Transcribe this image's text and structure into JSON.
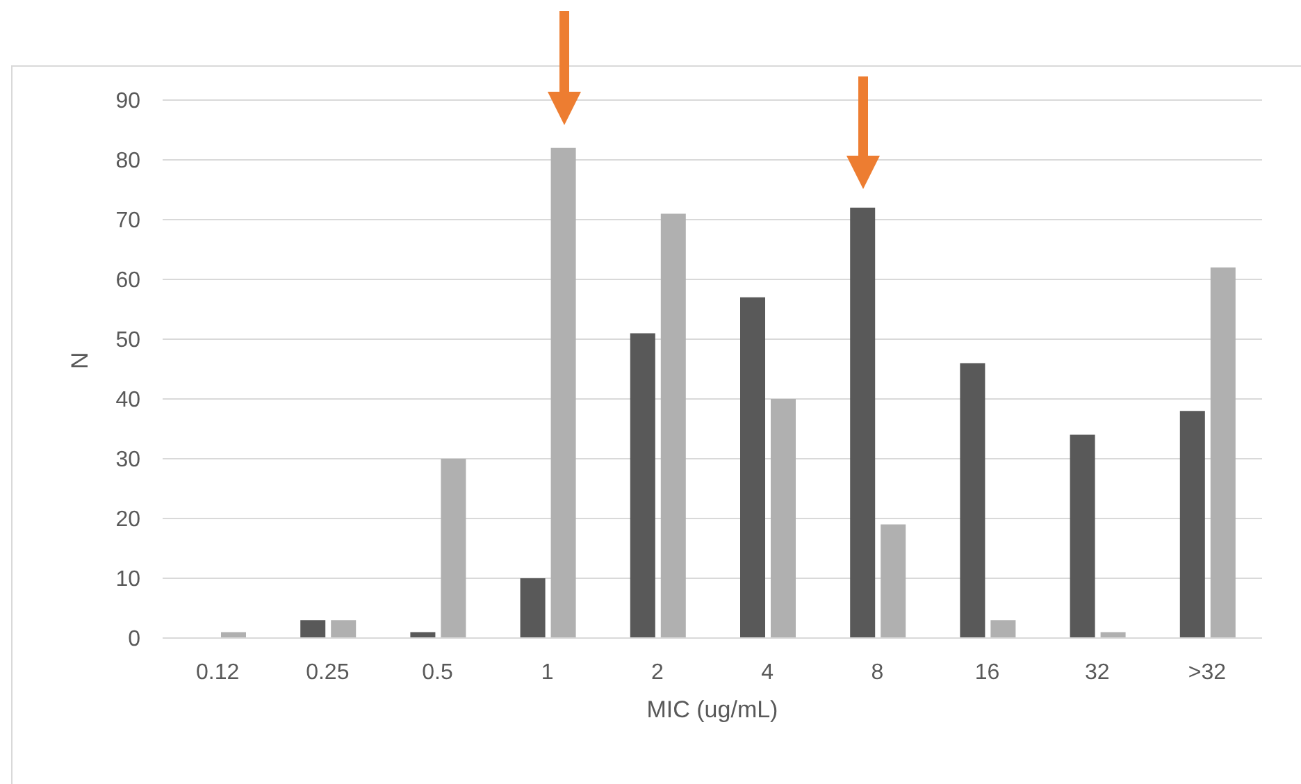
{
  "chart_data": {
    "type": "bar",
    "xlabel": "MIC (ug/mL)",
    "ylabel": "N",
    "categories": [
      "0.12",
      "0.25",
      "0.5",
      "1",
      "2",
      "4",
      "8",
      "16",
      "32",
      ">32"
    ],
    "series": [
      {
        "color": "#595959",
        "values": [
          0,
          3,
          1,
          10,
          51,
          57,
          72,
          46,
          34,
          38
        ]
      },
      {
        "color": "#b0b0b0",
        "values": [
          1,
          3,
          30,
          82,
          71,
          40,
          19,
          3,
          1,
          62
        ]
      }
    ],
    "ylim": [
      0,
      90
    ],
    "yticks": [
      0,
      10,
      20,
      30,
      40,
      50,
      60,
      70,
      80,
      90
    ],
    "grid": "y",
    "legend": false
  }
}
